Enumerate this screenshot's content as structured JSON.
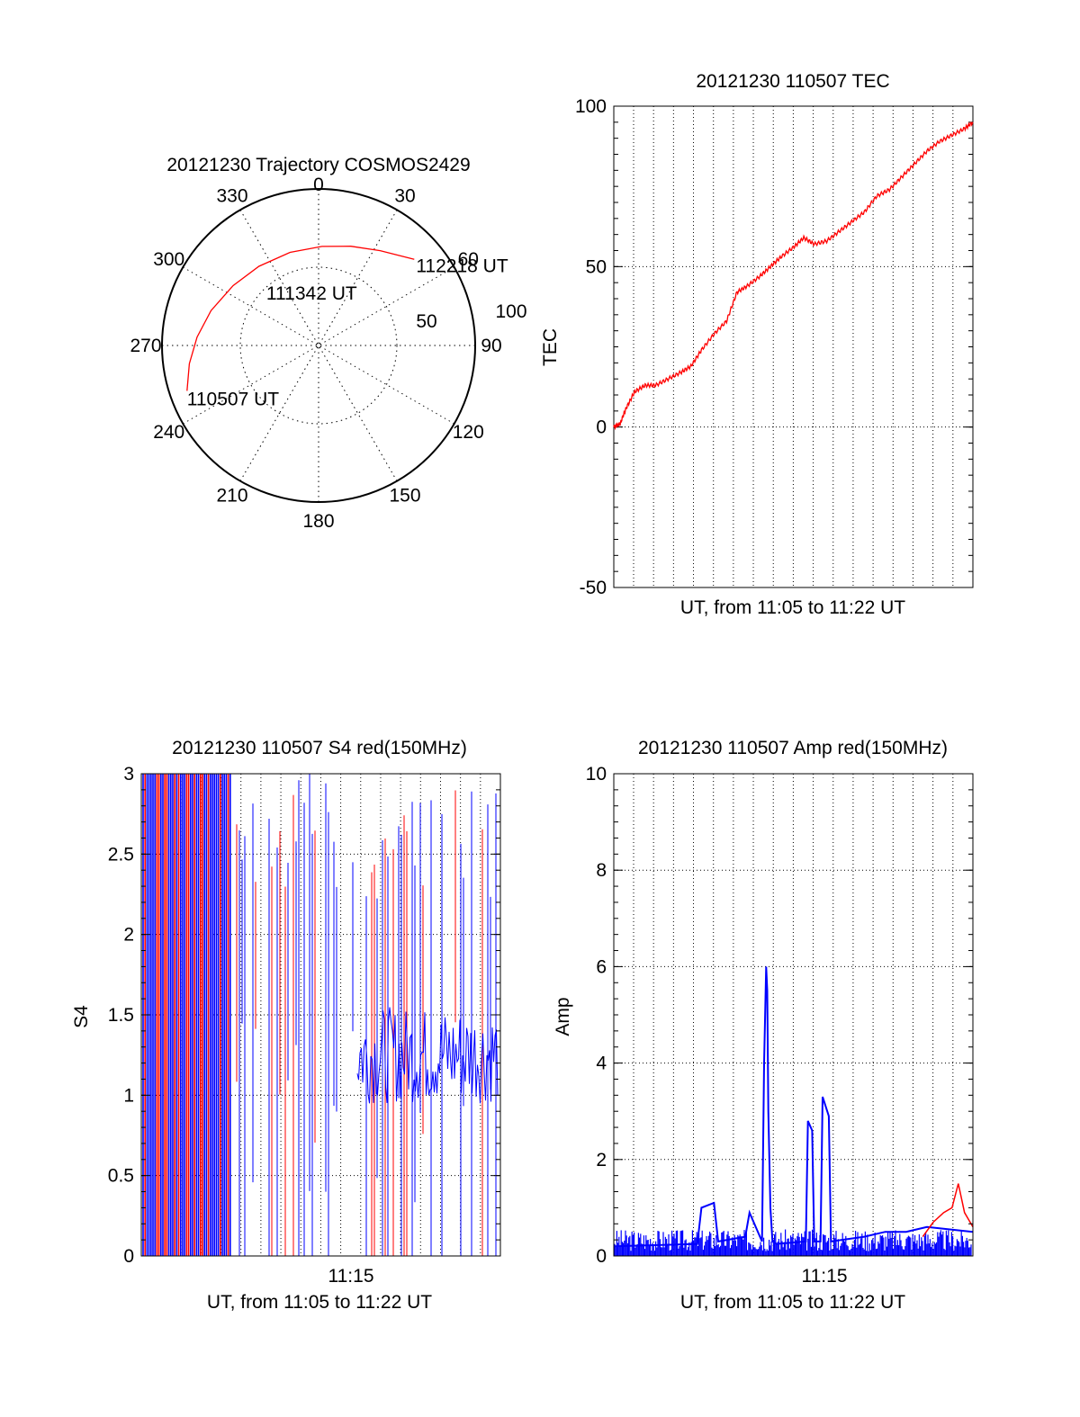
{
  "colors": {
    "red": "#ff0000",
    "blue": "#0000ff",
    "axis": "#000000"
  },
  "chart_data": [
    {
      "type": "polar",
      "title": "20121230 Trajectory COSMOS2429",
      "azimuth_labels": [
        "0",
        "30",
        "60",
        "90",
        "120",
        "150",
        "180",
        "210",
        "240",
        "270",
        "300",
        "330"
      ],
      "radial_labels": [
        "50",
        "100"
      ],
      "track": {
        "points": [
          {
            "az": 251,
            "el": 10
          },
          {
            "az": 262,
            "el": 15
          },
          {
            "az": 274,
            "el": 20
          },
          {
            "az": 288,
            "el": 25
          },
          {
            "az": 305,
            "el": 30
          },
          {
            "az": 323,
            "el": 33
          },
          {
            "az": 343,
            "el": 34
          },
          {
            "az": 2,
            "el": 33
          },
          {
            "az": 18,
            "el": 30
          },
          {
            "az": 33,
            "el": 25
          },
          {
            "az": 48,
            "el": 16
          }
        ],
        "labels": [
          {
            "text": "110507 UT",
            "az": 251,
            "el": 10
          },
          {
            "text": "111342 UT",
            "az": 350,
            "el": 60
          },
          {
            "text": "112218 UT",
            "az": 48,
            "el": 16
          }
        ]
      }
    },
    {
      "type": "line",
      "title": "20121230 110507 TEC",
      "xlabel": "UT, from 11:05 to 11:22 UT",
      "ylabel": "TEC",
      "ylim": [
        -50,
        100
      ],
      "yticks": [
        "-50",
        "0",
        "50",
        "100"
      ],
      "grid": true,
      "series": [
        {
          "color": "red",
          "x": [
            0,
            0.3,
            0.6,
            1.0,
            1.5,
            2.0,
            2.6,
            3.2,
            3.7,
            4.2,
            4.8,
            5.4,
            5.9,
            6.4,
            7.0,
            7.5,
            8.0,
            8.6,
            9.1,
            9.6,
            10.2,
            10.8,
            11.4,
            12.0,
            12.6,
            13.2,
            13.8,
            14.4,
            15.0,
            15.6,
            16.2,
            16.8,
            17.2
          ],
          "y": [
            0,
            1,
            6,
            11,
            13,
            13,
            15,
            17,
            19,
            24,
            29,
            33,
            42,
            44,
            47,
            50,
            53,
            56,
            59,
            57,
            58,
            61,
            64,
            67,
            72,
            74,
            78,
            82,
            86,
            89,
            91,
            93,
            95
          ]
        }
      ]
    },
    {
      "type": "line",
      "title": "20121230 110507 S4 red(150MHz)",
      "xlabel": "UT, from 11:05 to 11:22 UT",
      "ylabel": "S4",
      "ylim": [
        0,
        3
      ],
      "yticks": [
        "0",
        "0.5",
        "1",
        "1.5",
        "2",
        "2.5",
        "3"
      ],
      "xticks": [
        "11:15"
      ],
      "grid": true,
      "series": [
        {
          "color": "red",
          "x": [
            0,
            17.2
          ],
          "y": [
            1.5,
            1.5
          ]
        },
        {
          "color": "blue",
          "x": [
            0,
            17.2
          ],
          "y": [
            1.2,
            1.2
          ]
        }
      ]
    },
    {
      "type": "line",
      "title": "20121230 110507 Amp red(150MHz)",
      "xlabel": "UT, from 11:05 to 11:22 UT",
      "ylabel": "Amp",
      "ylim": [
        0,
        10
      ],
      "yticks": [
        "0",
        "2",
        "4",
        "6",
        "8",
        "10"
      ],
      "xticks": [
        "11:15"
      ],
      "grid": true,
      "series": [
        {
          "color": "blue",
          "x": [
            0,
            4.0,
            4.2,
            4.8,
            5.0,
            6.3,
            6.5,
            7.1,
            7.2,
            7.3,
            7.35,
            7.4,
            7.5,
            7.6,
            7.8,
            9.2,
            9.3,
            9.5,
            9.6,
            9.9,
            10.0,
            10.3,
            10.4,
            12.0,
            13.0,
            14.0,
            15.0,
            17.2
          ],
          "y": [
            0.2,
            0.25,
            1.0,
            1.1,
            0.3,
            0.4,
            0.9,
            0.3,
            4.0,
            6.0,
            5.5,
            3.0,
            1.0,
            0.3,
            0.25,
            0.3,
            2.8,
            2.6,
            0.3,
            0.3,
            3.3,
            2.9,
            0.3,
            0.4,
            0.5,
            0.5,
            0.6,
            0.5
          ]
        },
        {
          "color": "red",
          "x": [
            14.8,
            15.3,
            15.8,
            16.2,
            16.5,
            16.8,
            17.2
          ],
          "y": [
            0.4,
            0.7,
            0.9,
            1.0,
            1.5,
            0.9,
            0.6
          ]
        }
      ]
    }
  ]
}
